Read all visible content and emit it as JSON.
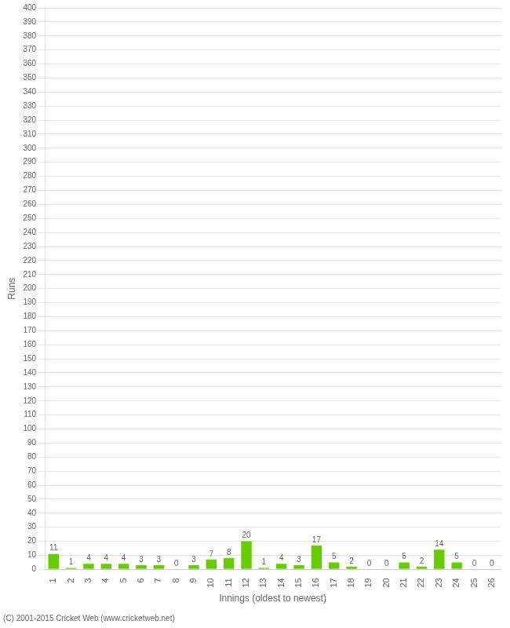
{
  "chart_data": {
    "type": "bar",
    "categories": [
      "1",
      "2",
      "3",
      "4",
      "5",
      "6",
      "7",
      "8",
      "9",
      "10",
      "11",
      "12",
      "13",
      "14",
      "15",
      "16",
      "17",
      "18",
      "19",
      "20",
      "21",
      "22",
      "23",
      "24",
      "25",
      "26"
    ],
    "values": [
      11,
      1,
      4,
      4,
      4,
      3,
      3,
      0,
      3,
      7,
      8,
      20,
      1,
      4,
      3,
      17,
      5,
      2,
      0,
      0,
      5,
      2,
      14,
      5,
      0,
      0
    ],
    "color": "#66cc00",
    "x_label": "Innings (oldest to newest)",
    "y_label": "Runs",
    "ylim": [
      0,
      400
    ],
    "yticks": [
      0,
      10,
      20,
      30,
      40,
      50,
      60,
      70,
      80,
      90,
      100,
      110,
      120,
      130,
      140,
      150,
      160,
      170,
      180,
      190,
      200,
      210,
      220,
      230,
      240,
      250,
      260,
      270,
      280,
      290,
      300,
      310,
      320,
      330,
      340,
      350,
      360,
      370,
      380,
      390,
      400
    ],
    "grid": true,
    "data_labels": true,
    "annotations": [
      "(C) 2001-2015 Cricket Web (www.cricketweb.net)"
    ]
  }
}
